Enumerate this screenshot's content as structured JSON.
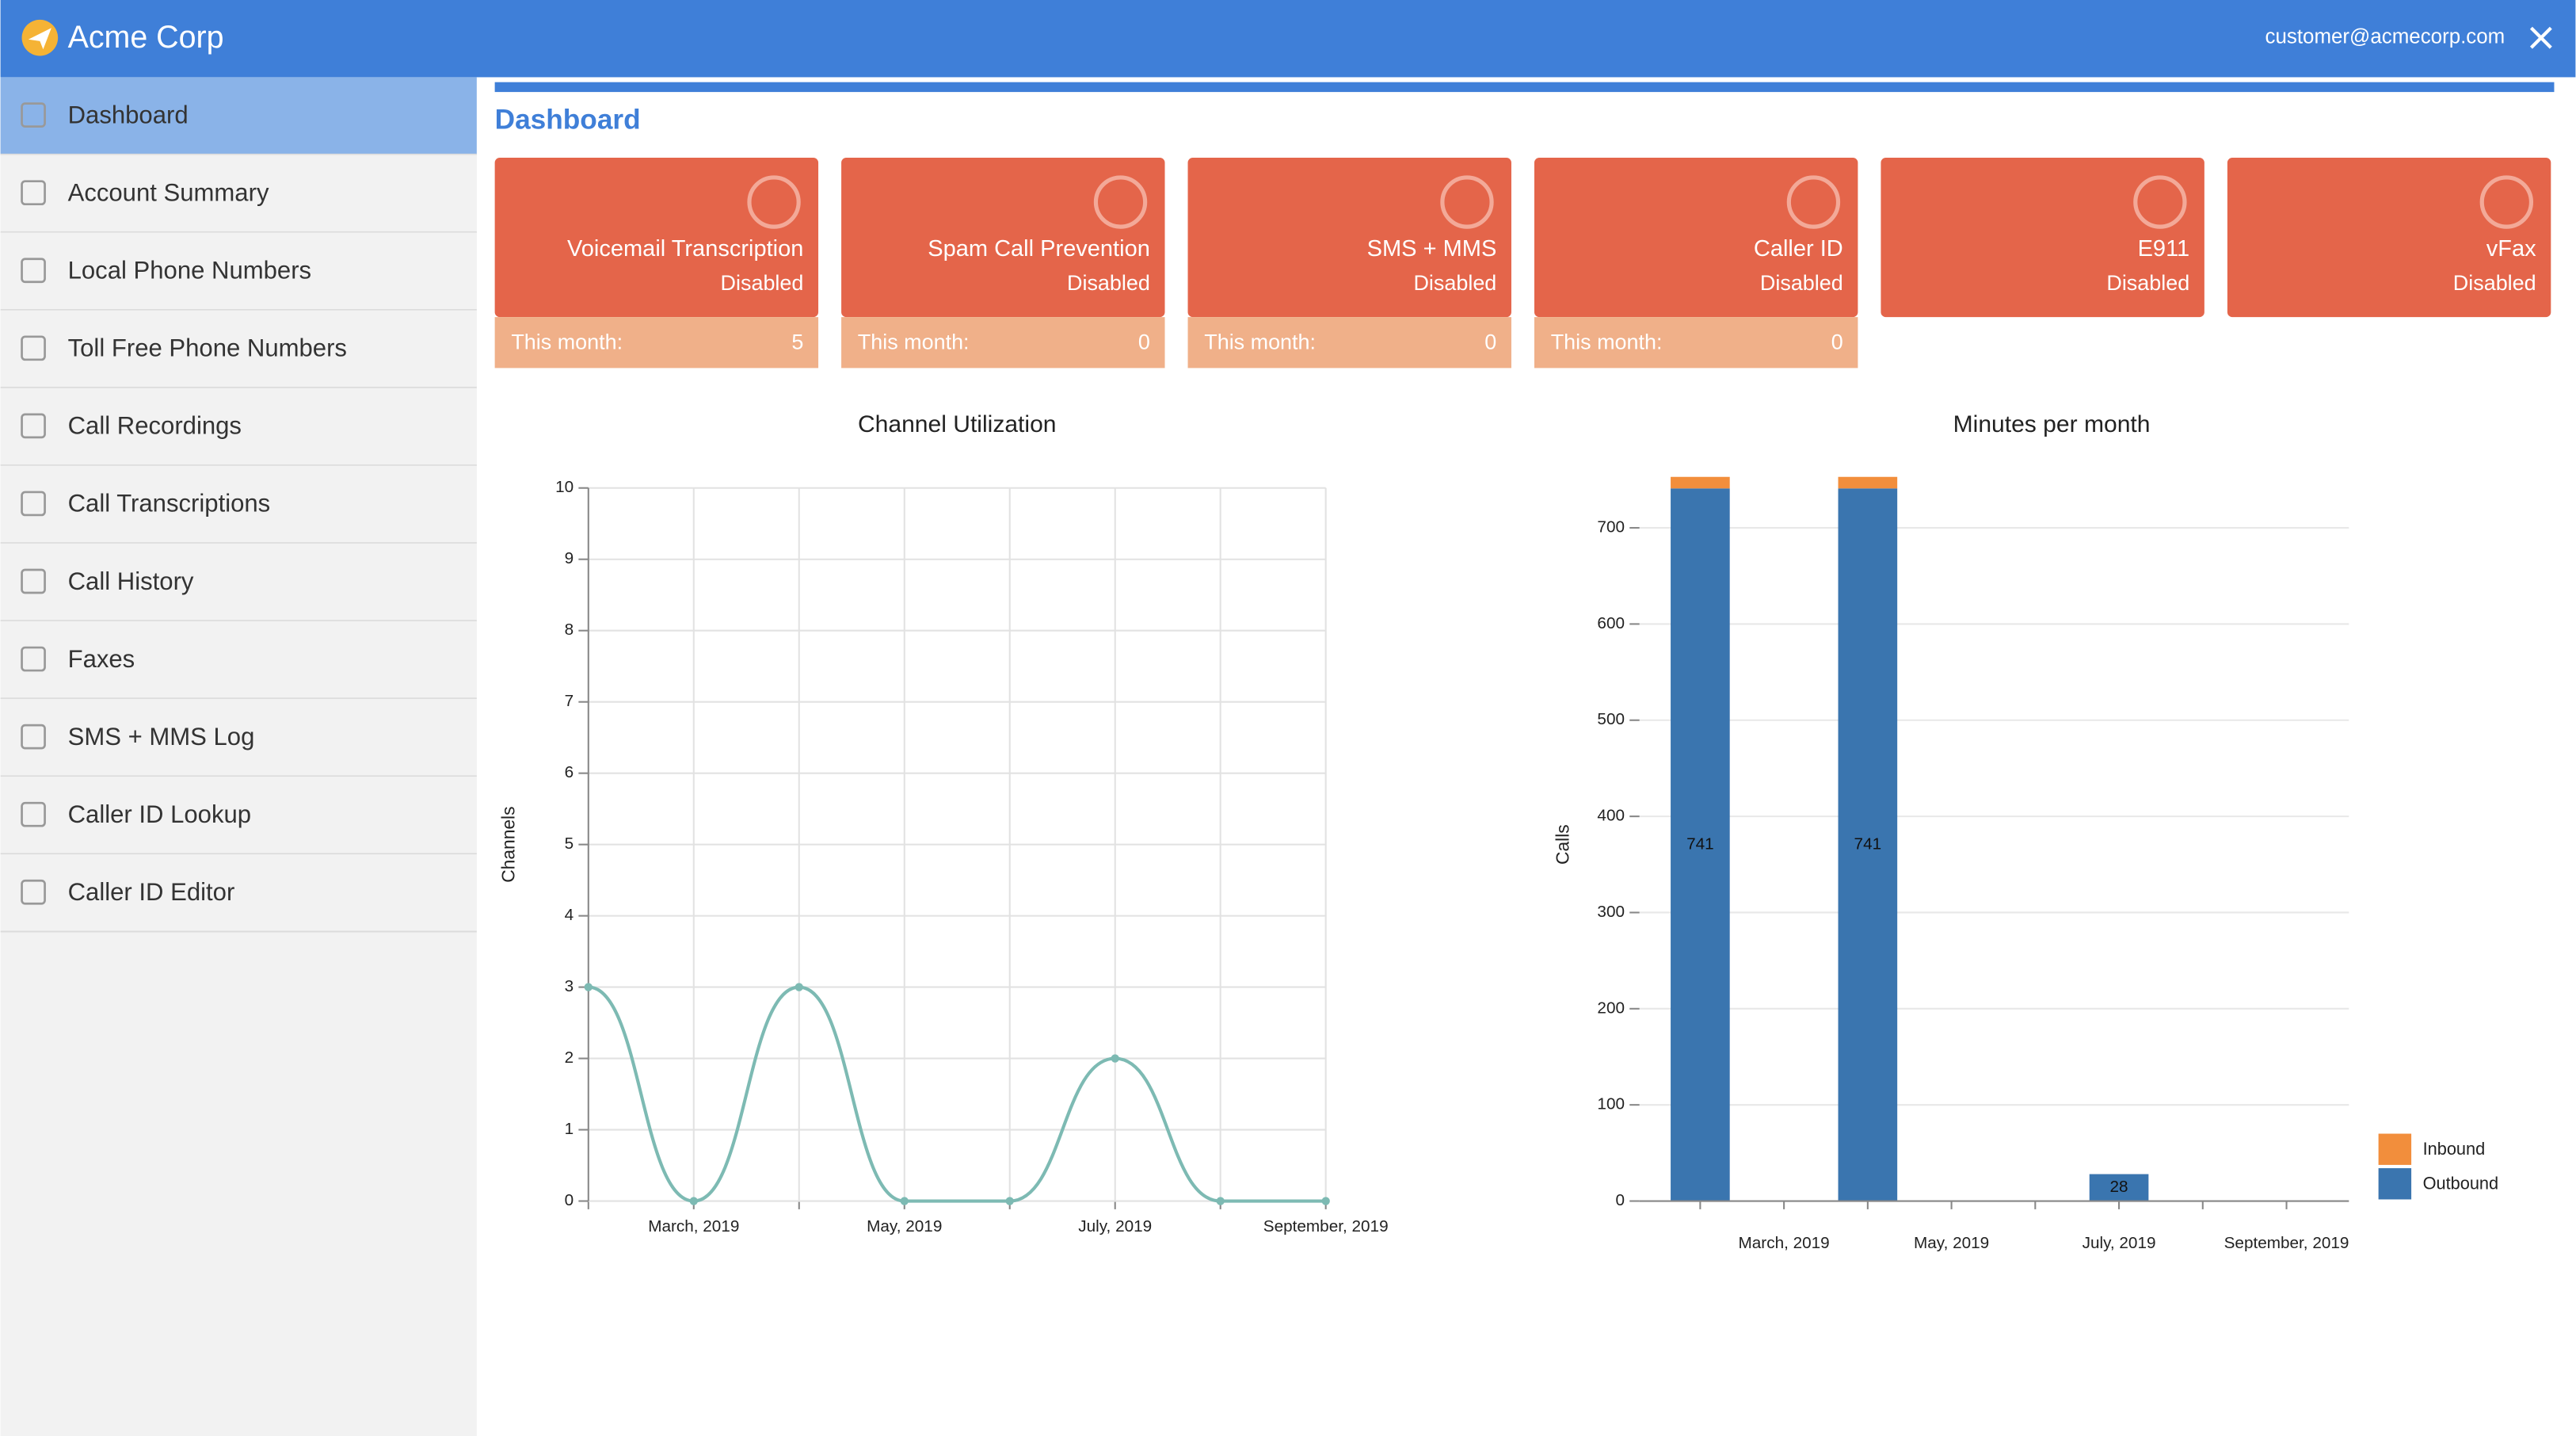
{
  "header": {
    "title": "Acme Corp",
    "email": "customer@acmecorp.com"
  },
  "sidebar": {
    "items": [
      "Dashboard",
      "Account Summary",
      "Local Phone Numbers",
      "Toll Free Phone Numbers",
      "Call Recordings",
      "Call Transcriptions",
      "Call History",
      "Faxes",
      "SMS + MMS Log",
      "Caller ID Lookup",
      "Caller ID Editor"
    ]
  },
  "page_title": "Dashboard",
  "cards": [
    {
      "title": "Voicemail Transcription",
      "status": "Disabled",
      "footer_label": "This month:",
      "footer_value": "5"
    },
    {
      "title": "Spam Call Prevention",
      "status": "Disabled",
      "footer_label": "This month:",
      "footer_value": "0"
    },
    {
      "title": "SMS + MMS",
      "status": "Disabled",
      "footer_label": "This month:",
      "footer_value": "0"
    },
    {
      "title": "Caller ID",
      "status": "Disabled",
      "footer_label": "This month:",
      "footer_value": "0"
    },
    {
      "title": "E911",
      "status": "Disabled"
    },
    {
      "title": "vFax",
      "status": "Disabled"
    }
  ],
  "chart_data": [
    {
      "type": "line",
      "title": "Channel Utilization",
      "y_label": "Channels",
      "categories": [
        null,
        "March, 2019",
        null,
        "May, 2019",
        null,
        "July, 2019",
        null,
        "September, 2019"
      ],
      "series": [
        {
          "name": "Channels",
          "color": "#7dbab3",
          "values": [
            3,
            0,
            3,
            0,
            0,
            2,
            0,
            0
          ]
        }
      ],
      "ylim": [
        0,
        10
      ],
      "yticks": [
        0,
        1,
        2,
        3,
        4,
        5,
        6,
        7,
        8,
        9,
        10
      ],
      "grid": true
    },
    {
      "type": "stacked_bar",
      "title": "Minutes per month",
      "y_label": "Calls",
      "categories": [
        null,
        "March, 2019",
        null,
        "May, 2019",
        null,
        "July, 2019",
        null,
        "September, 2019"
      ],
      "series": [
        {
          "name": "Outbound",
          "color": "#3a75af",
          "values": [
            741,
            0,
            741,
            0,
            0,
            28,
            0,
            0
          ]
        },
        {
          "name": "Inbound",
          "color": "#f28e3c",
          "values": [
            12,
            0,
            12,
            0,
            0,
            0,
            0,
            0
          ]
        }
      ],
      "ylim": [
        0,
        750
      ],
      "yticks": [
        0,
        100,
        200,
        300,
        400,
        500,
        600,
        700
      ],
      "grid": true,
      "legend": "right"
    }
  ]
}
